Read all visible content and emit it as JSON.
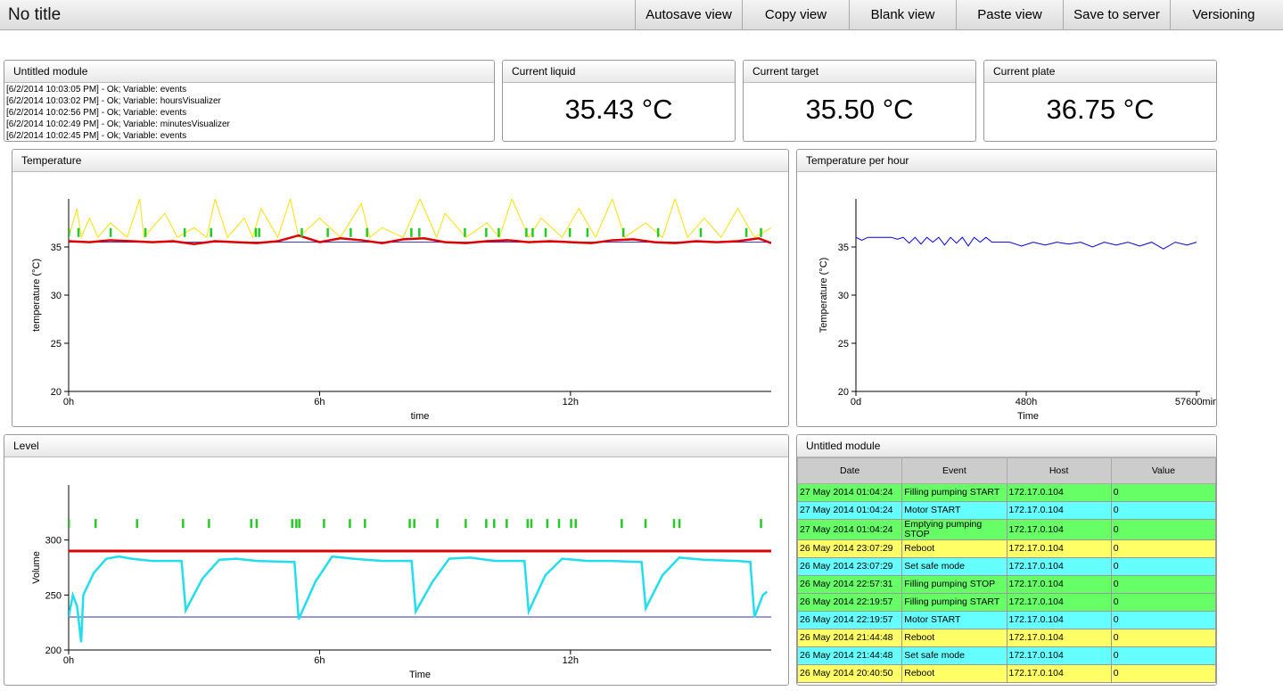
{
  "header": {
    "title": "No title",
    "buttons": [
      "Autosave view",
      "Copy view",
      "Blank view",
      "Paste view",
      "Save to server",
      "Versioning"
    ]
  },
  "log_module": {
    "title": "Untitled module",
    "lines": [
      "[6/2/2014 10:03:05 PM] - Ok; Variable: events",
      "[6/2/2014 10:03:02 PM] - Ok; Variable: hoursVisualizer",
      "[6/2/2014 10:02:56 PM] - Ok; Variable: events",
      "[6/2/2014 10:02:49 PM] - Ok; Variable: minutesVisualizer",
      "[6/2/2014 10:02:45 PM] - Ok; Variable: events"
    ]
  },
  "gauges": [
    {
      "title": "Current liquid",
      "value": "35.43 °C"
    },
    {
      "title": "Current target",
      "value": "35.50 °C"
    },
    {
      "title": "Current plate",
      "value": "36.75 °C"
    }
  ],
  "temperature": {
    "title": "Temperature",
    "chart": {
      "type": "line",
      "x_label": "time",
      "y_label": "temperature (°C)",
      "xlim": [
        0,
        16.8
      ],
      "ylim": [
        20,
        40
      ],
      "xticks": [
        {
          "value": 0,
          "label": "0h"
        },
        {
          "value": 6,
          "label": "6h"
        },
        {
          "value": 12,
          "label": "12h"
        }
      ],
      "yticks": [
        20,
        25,
        30,
        35
      ],
      "series": [
        {
          "kind": "line",
          "color": "#ffe000",
          "width": 1,
          "x": [
            0,
            0.2,
            0.3,
            0.5,
            0.7,
            1.0,
            1.4,
            1.7,
            1.8,
            2.3,
            2.6,
            3.0,
            3.3,
            3.5,
            3.8,
            4.2,
            4.4,
            4.6,
            5.0,
            5.3,
            5.5,
            6.0,
            6.5,
            7.0,
            7.2,
            7.5,
            8.0,
            8.4,
            8.8,
            9.0,
            9.5,
            10.0,
            10.3,
            10.6,
            11.0,
            11.3,
            11.8,
            12.2,
            12.6,
            13.0,
            13.3,
            13.8,
            14.2,
            14.5,
            14.8,
            15.2,
            15.6,
            16.0,
            16.4,
            16.8
          ],
          "values": [
            36,
            39,
            36,
            38,
            36,
            37.5,
            36,
            40,
            36,
            38.5,
            36,
            37,
            36,
            40,
            36,
            38,
            36,
            39,
            36,
            40,
            36,
            38,
            36,
            39.5,
            36,
            37,
            36,
            40,
            36,
            38.5,
            36,
            37.5,
            36,
            40,
            36,
            38,
            36,
            39,
            36,
            40,
            36,
            37.5,
            36,
            40,
            36,
            38,
            36,
            39,
            36,
            37
          ]
        },
        {
          "kind": "line",
          "color": "#3333aa",
          "width": 1,
          "x": [
            0,
            16.8
          ],
          "values": [
            35.5,
            35.5
          ]
        },
        {
          "kind": "line",
          "color": "#dd0000",
          "width": 2.5,
          "x": [
            0,
            0.5,
            1,
            1.5,
            2,
            2.5,
            3,
            3.5,
            4,
            4.5,
            5,
            5.5,
            6,
            6.5,
            7,
            7.5,
            8,
            8.5,
            9,
            9.5,
            10,
            10.5,
            11,
            11.5,
            12,
            12.5,
            13,
            13.5,
            14,
            14.5,
            15,
            15.5,
            16,
            16.5,
            16.8
          ],
          "values": [
            35.6,
            35.5,
            35.7,
            35.6,
            35.5,
            35.6,
            35.3,
            35.6,
            35.5,
            35.4,
            35.6,
            36.2,
            35.5,
            35.9,
            35.7,
            35.4,
            35.8,
            35.9,
            35.5,
            35.4,
            35.6,
            35.7,
            35.5,
            35.6,
            35.5,
            35.4,
            35.7,
            35.8,
            35.5,
            35.4,
            35.6,
            35.5,
            35.6,
            35.9,
            35.4
          ]
        },
        {
          "kind": "events",
          "color": "#22cc22",
          "x": [
            0,
            0.23,
            1.0,
            1.83,
            2.77,
            3.4,
            4.47,
            4.55,
            5.57,
            6.19,
            6.74,
            7.13,
            8.19,
            8.38,
            9.47,
            9.98,
            10.28,
            10.94,
            11.09,
            11.4,
            11.98,
            12.4,
            13.26,
            14.09,
            15.11,
            16.2,
            16.55
          ],
          "values": [
            36.5,
            36.5,
            36.5,
            36.5,
            36.5,
            36.5,
            36.5,
            36.5,
            36.5,
            36.5,
            36.5,
            36.5,
            36.5,
            36.5,
            36.5,
            36.5,
            36.5,
            36.5,
            36.5,
            36.5,
            36.5,
            36.5,
            36.5,
            36.5,
            36.5,
            36.5,
            36.5
          ]
        }
      ]
    }
  },
  "temperature_per_hour": {
    "title": "Temperature per hour",
    "chart": {
      "type": "line",
      "x_label": "Time",
      "y_label": "Temperature (°C)",
      "xlim": [
        0,
        58200
      ],
      "ylim": [
        20,
        40
      ],
      "xticks": [
        {
          "value": 0,
          "label": "0d"
        },
        {
          "value": 28800,
          "label": "480h"
        },
        {
          "value": 57600,
          "label": "57600min"
        }
      ],
      "yticks": [
        20,
        25,
        30,
        35
      ],
      "series": [
        {
          "kind": "line",
          "color": "#0000dd",
          "width": 1,
          "x": [
            0,
            1000,
            2000,
            3000,
            4000,
            5000,
            6000,
            7000,
            8000,
            9000,
            10000,
            11000,
            12000,
            13000,
            14000,
            15000,
            16000,
            17000,
            18000,
            19000,
            20000,
            21000,
            22000,
            23000,
            26000,
            28000,
            30000,
            32000,
            34000,
            36000,
            38000,
            40000,
            42000,
            44000,
            46000,
            48000,
            50000,
            52000,
            54000,
            56000,
            57600
          ],
          "values": [
            36,
            35.7,
            36,
            36,
            36,
            36,
            36,
            35.8,
            36,
            35.4,
            36,
            35.3,
            36,
            35.5,
            36,
            35.2,
            36,
            35.4,
            36,
            35.1,
            36,
            35.5,
            36,
            35.5,
            35.5,
            35.1,
            35.5,
            35.2,
            35.5,
            35.3,
            35.5,
            35.0,
            35.5,
            35.2,
            35.5,
            35.1,
            35.5,
            34.8,
            35.5,
            35.2,
            35.5
          ]
        }
      ]
    }
  },
  "level": {
    "title": "Level",
    "chart": {
      "type": "line",
      "x_label": "Time",
      "y_label": "Volume",
      "xlim": [
        0,
        16.8
      ],
      "ylim": [
        200,
        350
      ],
      "xticks": [
        {
          "value": 0,
          "label": "0h"
        },
        {
          "value": 6,
          "label": "6h"
        },
        {
          "value": 12,
          "label": "12h"
        }
      ],
      "yticks": [
        200,
        250,
        300
      ],
      "series": [
        {
          "kind": "line",
          "color": "#dd0000",
          "width": 3,
          "x": [
            0,
            16.8
          ],
          "values": [
            290,
            290
          ]
        },
        {
          "kind": "line",
          "color": "#3333aa",
          "width": 1,
          "x": [
            0,
            16.8
          ],
          "values": [
            230,
            230
          ]
        },
        {
          "kind": "line",
          "color": "#22ddee",
          "width": 2.5,
          "x": [
            0,
            0.1,
            0.2,
            0.3,
            0.35,
            0.6,
            0.9,
            1.2,
            1.5,
            2.0,
            2.7,
            2.8,
            3.2,
            3.6,
            4.0,
            4.5,
            5.4,
            5.5,
            5.9,
            6.3,
            6.8,
            7.5,
            8.2,
            8.3,
            8.7,
            9.1,
            9.6,
            10.2,
            10.9,
            11.0,
            11.4,
            11.8,
            12.4,
            13.0,
            13.7,
            13.8,
            14.2,
            14.6,
            15.2,
            16.0,
            16.3,
            16.4,
            16.6,
            16.7
          ],
          "values": [
            230,
            250,
            240,
            207,
            250,
            270,
            283,
            285,
            283,
            281,
            281,
            236,
            265,
            282,
            283,
            281,
            280,
            228,
            262,
            285,
            283,
            281,
            281,
            235,
            262,
            283,
            284,
            281,
            281,
            235,
            268,
            283,
            281,
            281,
            280,
            238,
            268,
            284,
            282,
            281,
            280,
            230,
            250,
            253
          ]
        },
        {
          "kind": "events",
          "color": "#22cc22",
          "x": [
            0,
            0.64,
            1.63,
            2.73,
            3.35,
            4.36,
            4.49,
            5.34,
            5.44,
            5.51,
            6.1,
            6.72,
            7.08,
            8.15,
            8.26,
            8.81,
            9.49,
            9.98,
            10.17,
            10.47,
            10.97,
            11.06,
            11.44,
            11.72,
            12.01,
            12.12,
            13.22,
            13.79,
            14.47,
            14.6,
            16.55
          ],
          "values": [
            315,
            315,
            315,
            315,
            315,
            315,
            315,
            315,
            315,
            315,
            315,
            315,
            315,
            315,
            315,
            315,
            315,
            315,
            315,
            315,
            315,
            315,
            315,
            315,
            315,
            315,
            315,
            315,
            315,
            315,
            315
          ]
        }
      ]
    }
  },
  "event_module": {
    "title": "Untitled module",
    "table": {
      "columns": [
        "Date",
        "Event",
        "Host",
        "Value"
      ],
      "rows": [
        {
          "color": "#66ff66",
          "cells": [
            "27 May 2014 01:04:24",
            "Filling pumping START",
            "172.17.0.104",
            "0"
          ]
        },
        {
          "color": "#66ffff",
          "cells": [
            "27 May 2014 01:04:24",
            "Motor START",
            "172.17.0.104",
            "0"
          ]
        },
        {
          "color": "#66ff66",
          "cells": [
            "27 May 2014 01:04:24",
            "Emptying pumping STOP",
            "172.17.0.104",
            "0"
          ]
        },
        {
          "color": "#ffff66",
          "cells": [
            "26 May 2014 23:07:29",
            "Reboot",
            "172.17.0.104",
            "0"
          ]
        },
        {
          "color": "#66ffff",
          "cells": [
            "26 May 2014 23:07:29",
            "Set safe mode",
            "172.17.0.104",
            "0"
          ]
        },
        {
          "color": "#66ff66",
          "cells": [
            "26 May 2014 22:57:31",
            "Filling pumping STOP",
            "172.17.0.104",
            "0"
          ]
        },
        {
          "color": "#66ff66",
          "cells": [
            "26 May 2014 22:19:57",
            "Filling pumping START",
            "172.17.0.104",
            "0"
          ]
        },
        {
          "color": "#66ffff",
          "cells": [
            "26 May 2014 22:19:57",
            "Motor START",
            "172.17.0.104",
            "0"
          ]
        },
        {
          "color": "#ffff66",
          "cells": [
            "26 May 2014 21:44:48",
            "Reboot",
            "172.17.0.104",
            "0"
          ]
        },
        {
          "color": "#66ffff",
          "cells": [
            "26 May 2014 21:44:48",
            "Set safe mode",
            "172.17.0.104",
            "0"
          ]
        },
        {
          "color": "#ffff66",
          "cells": [
            "26 May 2014 20:40:50",
            "Reboot",
            "172.17.0.104",
            "0"
          ]
        }
      ]
    }
  }
}
